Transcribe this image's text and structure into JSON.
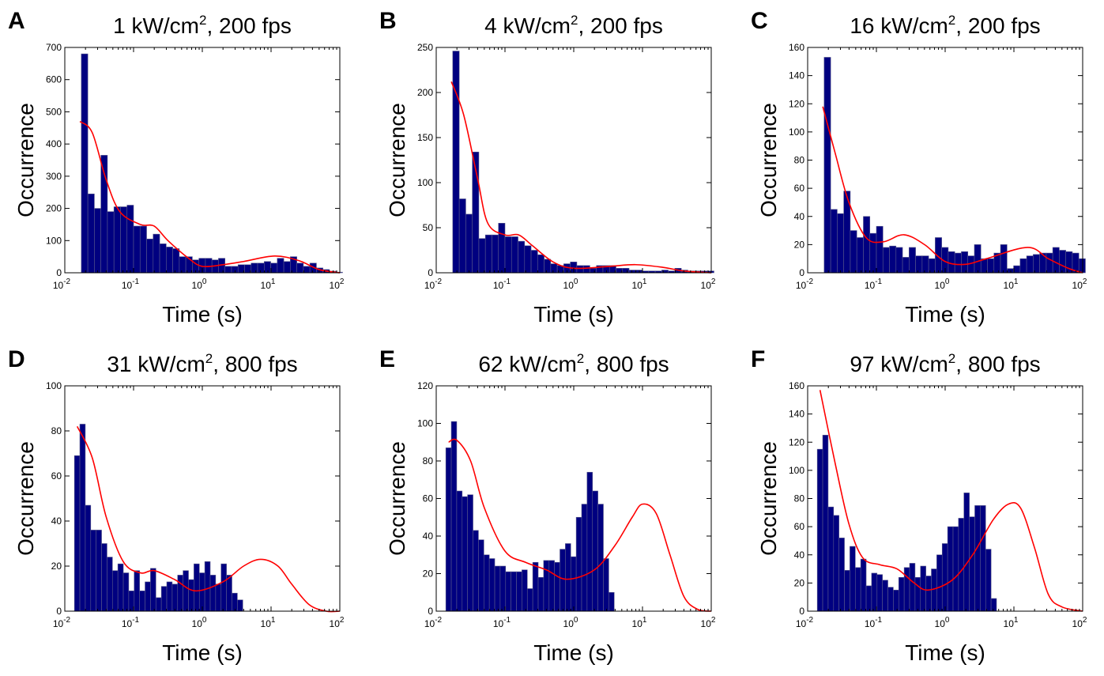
{
  "figure": {
    "colors": {
      "bar": "#000080",
      "bar_edge": "#5a5a8c",
      "fit": "#ff0000",
      "axis": "#000000"
    }
  },
  "chart_data": [
    {
      "panel": "A",
      "type": "bar",
      "title": "1 kW/cm², 200 fps",
      "title_main": "1 kW/cm",
      "title_sup": "2",
      "title_rest": ", 200 fps",
      "xlabel": "Time (s)",
      "ylabel": "Occurrence",
      "xscale": "log",
      "xlim": [
        0.01,
        100
      ],
      "ylim": [
        0,
        700
      ],
      "yticks": [
        0,
        100,
        200,
        300,
        400,
        500,
        600,
        700
      ],
      "xticks": [
        {
          "base": "10",
          "exp": "-2"
        },
        {
          "base": "10",
          "exp": "-1"
        },
        {
          "base": "10",
          "exp": "0"
        },
        {
          "base": "10",
          "exp": "1"
        },
        {
          "base": "10",
          "exp": "2"
        }
      ],
      "bin_start_log10": -1.76,
      "bin_width_log10": 0.095,
      "values": [
        680,
        245,
        200,
        365,
        190,
        205,
        205,
        210,
        145,
        145,
        105,
        120,
        90,
        80,
        75,
        50,
        50,
        40,
        45,
        45,
        40,
        45,
        20,
        20,
        25,
        25,
        30,
        30,
        35,
        30,
        45,
        35,
        50,
        30,
        20,
        30,
        15,
        10,
        5,
        2
      ],
      "fit": [
        [
          -1.78,
          470
        ],
        [
          -1.6,
          435
        ],
        [
          -1.4,
          290
        ],
        [
          -1.2,
          190
        ],
        [
          -0.9,
          150
        ],
        [
          -0.7,
          145
        ],
        [
          -0.5,
          100
        ],
        [
          -0.2,
          45
        ],
        [
          0.0,
          20
        ],
        [
          0.3,
          25
        ],
        [
          0.6,
          35
        ],
        [
          1.05,
          52
        ],
        [
          1.4,
          38
        ],
        [
          1.7,
          10
        ],
        [
          2.0,
          0
        ]
      ]
    },
    {
      "panel": "B",
      "type": "bar",
      "title": "4 kW/cm², 200 fps",
      "title_main": "4 kW/cm",
      "title_sup": "2",
      "title_rest": ", 200 fps",
      "xlabel": "Time (s)",
      "ylabel": "Occurrence",
      "xscale": "log",
      "xlim": [
        0.01,
        100
      ],
      "ylim": [
        0,
        250
      ],
      "yticks": [
        0,
        50,
        100,
        150,
        200,
        250
      ],
      "xticks": [
        {
          "base": "10",
          "exp": "-2"
        },
        {
          "base": "10",
          "exp": "-1"
        },
        {
          "base": "10",
          "exp": "0"
        },
        {
          "base": "10",
          "exp": "1"
        },
        {
          "base": "10",
          "exp": "2"
        }
      ],
      "bin_start_log10": -1.76,
      "bin_width_log10": 0.095,
      "values": [
        246,
        82,
        65,
        134,
        38,
        42,
        42,
        55,
        40,
        40,
        35,
        30,
        25,
        20,
        15,
        10,
        8,
        10,
        12,
        8,
        8,
        5,
        8,
        8,
        8,
        5,
        5,
        3,
        3,
        2,
        2,
        2,
        3,
        2,
        5,
        3,
        2,
        2,
        2,
        2
      ],
      "fit": [
        [
          -1.78,
          212
        ],
        [
          -1.6,
          175
        ],
        [
          -1.4,
          105
        ],
        [
          -1.25,
          55
        ],
        [
          -1.0,
          42
        ],
        [
          -0.8,
          42
        ],
        [
          -0.6,
          30
        ],
        [
          -0.3,
          12
        ],
        [
          0.0,
          5
        ],
        [
          0.5,
          7
        ],
        [
          0.9,
          9
        ],
        [
          1.3,
          6
        ],
        [
          1.6,
          2
        ],
        [
          2.0,
          0
        ]
      ]
    },
    {
      "panel": "C",
      "type": "bar",
      "title": "16 kW/cm², 200 fps",
      "title_main": "16 kW/cm",
      "title_sup": "2",
      "title_rest": ", 200 fps",
      "xlabel": "Time (s)",
      "ylabel": "Occurrence",
      "xscale": "log",
      "xlim": [
        0.01,
        100
      ],
      "ylim": [
        0,
        160
      ],
      "yticks": [
        0,
        20,
        40,
        60,
        80,
        100,
        120,
        140,
        160
      ],
      "xticks": [
        {
          "base": "10",
          "exp": "-2"
        },
        {
          "base": "10",
          "exp": "-1"
        },
        {
          "base": "10",
          "exp": "0"
        },
        {
          "base": "10",
          "exp": "1"
        },
        {
          "base": "10",
          "exp": "2"
        }
      ],
      "bin_start_log10": -1.76,
      "bin_width_log10": 0.095,
      "values": [
        153,
        45,
        42,
        58,
        30,
        25,
        40,
        28,
        33,
        18,
        19,
        18,
        11,
        18,
        12,
        12,
        10,
        25,
        18,
        15,
        14,
        15,
        12,
        20,
        10,
        10,
        14,
        20,
        3,
        5,
        10,
        12,
        13,
        14,
        14,
        18,
        16,
        15,
        14,
        10
      ],
      "fit": [
        [
          -1.78,
          118
        ],
        [
          -1.6,
          85
        ],
        [
          -1.4,
          50
        ],
        [
          -1.15,
          25
        ],
        [
          -0.9,
          22
        ],
        [
          -0.6,
          27
        ],
        [
          -0.3,
          20
        ],
        [
          0.0,
          8
        ],
        [
          0.3,
          6
        ],
        [
          0.6,
          10
        ],
        [
          1.2,
          18
        ],
        [
          1.5,
          10
        ],
        [
          1.8,
          3
        ],
        [
          2.0,
          0
        ]
      ]
    },
    {
      "panel": "D",
      "type": "bar",
      "title": "31 kW/cm², 800 fps",
      "title_main": "31 kW/cm",
      "title_sup": "2",
      "title_rest": ", 800 fps",
      "xlabel": "Time (s)",
      "ylabel": "Occurrence",
      "xscale": "log",
      "xlim": [
        0.01,
        100
      ],
      "ylim": [
        0,
        100
      ],
      "yticks": [
        0,
        20,
        40,
        60,
        80,
        100
      ],
      "xticks": [
        {
          "base": "10",
          "exp": "-2"
        },
        {
          "base": "10",
          "exp": "-1"
        },
        {
          "base": "10",
          "exp": "0"
        },
        {
          "base": "10",
          "exp": "1"
        },
        {
          "base": "10",
          "exp": "2"
        }
      ],
      "bin_start_log10": -1.86,
      "bin_width_log10": 0.079,
      "values": [
        69,
        83,
        47,
        36,
        36,
        30,
        24,
        18,
        21,
        17,
        9,
        18,
        9,
        13,
        19,
        6,
        11,
        13,
        12,
        16,
        18,
        14,
        21,
        17,
        22,
        16,
        12,
        21,
        16,
        8,
        5
      ],
      "fit": [
        [
          -1.82,
          82
        ],
        [
          -1.6,
          68
        ],
        [
          -1.4,
          42
        ],
        [
          -1.15,
          22
        ],
        [
          -0.9,
          17
        ],
        [
          -0.7,
          18
        ],
        [
          -0.4,
          14
        ],
        [
          -0.1,
          9
        ],
        [
          0.3,
          13
        ],
        [
          0.6,
          20
        ],
        [
          0.85,
          23
        ],
        [
          1.1,
          20
        ],
        [
          1.3,
          12
        ],
        [
          1.55,
          3
        ],
        [
          1.8,
          0
        ],
        [
          2.0,
          0
        ]
      ]
    },
    {
      "panel": "E",
      "type": "bar",
      "title": "62 kW/cm², 800 fps",
      "title_main": "62 kW/cm",
      "title_sup": "2",
      "title_rest": ", 800 fps",
      "xlabel": "Time (s)",
      "ylabel": "Occurrence",
      "xscale": "log",
      "xlim": [
        0.01,
        100
      ],
      "ylim": [
        0,
        120
      ],
      "yticks": [
        0,
        20,
        40,
        60,
        80,
        100,
        120
      ],
      "xticks": [
        {
          "base": "10",
          "exp": "-2"
        },
        {
          "base": "10",
          "exp": "-1"
        },
        {
          "base": "10",
          "exp": "0"
        },
        {
          "base": "10",
          "exp": "1"
        },
        {
          "base": "10",
          "exp": "2"
        }
      ],
      "bin_start_log10": -1.86,
      "bin_width_log10": 0.079,
      "values": [
        87,
        101,
        64,
        61,
        62,
        43,
        38,
        30,
        28,
        24,
        24,
        21,
        21,
        21,
        22,
        12,
        26,
        18,
        27,
        27,
        26,
        33,
        36,
        29,
        50,
        57,
        74,
        64,
        57,
        28,
        10
      ],
      "fit": [
        [
          -1.82,
          90
        ],
        [
          -1.7,
          91
        ],
        [
          -1.5,
          80
        ],
        [
          -1.3,
          55
        ],
        [
          -1.0,
          32
        ],
        [
          -0.7,
          26
        ],
        [
          -0.4,
          22
        ],
        [
          -0.1,
          17
        ],
        [
          0.3,
          22
        ],
        [
          0.6,
          35
        ],
        [
          0.85,
          50
        ],
        [
          1.0,
          57
        ],
        [
          1.2,
          52
        ],
        [
          1.4,
          30
        ],
        [
          1.6,
          8
        ],
        [
          1.8,
          1
        ],
        [
          2.0,
          0
        ]
      ]
    },
    {
      "panel": "F",
      "type": "bar",
      "title": "97 kW/cm², 800 fps",
      "title_main": "97 kW/cm",
      "title_sup": "2",
      "title_rest": ", 800 fps",
      "xlabel": "Time (s)",
      "ylabel": "Occurrence",
      "xscale": "log",
      "xlim": [
        0.01,
        100
      ],
      "ylim": [
        0,
        160
      ],
      "yticks": [
        0,
        20,
        40,
        60,
        80,
        100,
        120,
        140,
        160
      ],
      "xticks": [
        {
          "base": "10",
          "exp": "-2"
        },
        {
          "base": "10",
          "exp": "-1"
        },
        {
          "base": "10",
          "exp": "0"
        },
        {
          "base": "10",
          "exp": "1"
        },
        {
          "base": "10",
          "exp": "2"
        }
      ],
      "bin_start_log10": -1.86,
      "bin_width_log10": 0.079,
      "values": [
        115,
        125,
        74,
        68,
        52,
        29,
        46,
        31,
        37,
        18,
        27,
        26,
        22,
        17,
        15,
        24,
        31,
        34,
        24,
        32,
        25,
        30,
        40,
        48,
        60,
        60,
        66,
        84,
        67,
        75,
        75,
        44,
        9
      ],
      "fit": [
        [
          -1.82,
          157
        ],
        [
          -1.6,
          105
        ],
        [
          -1.4,
          62
        ],
        [
          -1.2,
          38
        ],
        [
          -0.95,
          33
        ],
        [
          -0.7,
          30
        ],
        [
          -0.45,
          20
        ],
        [
          -0.25,
          15
        ],
        [
          0.1,
          22
        ],
        [
          0.4,
          40
        ],
        [
          0.7,
          65
        ],
        [
          0.92,
          76
        ],
        [
          1.1,
          73
        ],
        [
          1.3,
          45
        ],
        [
          1.5,
          12
        ],
        [
          1.7,
          3
        ],
        [
          2.0,
          0
        ]
      ]
    }
  ]
}
